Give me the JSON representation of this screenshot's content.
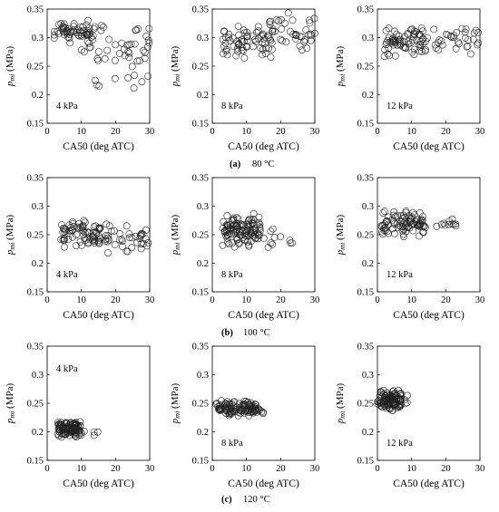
{
  "figure": {
    "captions": [
      {
        "letter": "(a)",
        "text": "80 °C"
      },
      {
        "letter": "(b)",
        "text": "100 °C"
      },
      {
        "letter": "(c)",
        "text": "120 °C"
      }
    ]
  },
  "chart_data": [
    {
      "type": "scatter",
      "id": "a1",
      "condition": "4 kPa",
      "xlabel": "CA50 (deg ATC)",
      "ylabel_sym": "p",
      "ylabel_sub": "mi",
      "ylabel_unit": "(MPa)",
      "xlim": [
        0,
        30
      ],
      "ylim": [
        0.15,
        0.35
      ],
      "xticks": [
        0,
        10,
        20,
        30
      ],
      "yticks": [
        0.15,
        0.2,
        0.25,
        0.3,
        0.35
      ],
      "series": [
        {
          "cluster": {
            "x": [
              2,
              14
            ],
            "y": [
              0.285,
              0.335
            ],
            "n": 60
          },
          "spread": {
            "x": [
              10,
              30
            ],
            "y": [
              0.2,
              0.345
            ],
            "n": 50
          }
        }
      ]
    },
    {
      "type": "scatter",
      "id": "a2",
      "condition": "8 kPa",
      "xlabel": "CA50 (deg ATC)",
      "ylabel_sym": "p",
      "ylabel_sub": "mi",
      "ylabel_unit": "(MPa)",
      "xlim": [
        0,
        30
      ],
      "ylim": [
        0.15,
        0.35
      ],
      "xticks": [
        0,
        10,
        20,
        30
      ],
      "yticks": [
        0.15,
        0.2,
        0.25,
        0.3,
        0.35
      ],
      "series": [
        {
          "cluster": {
            "x": [
              3,
              18
            ],
            "y": [
              0.26,
              0.33
            ],
            "n": 65
          },
          "spread": {
            "x": [
              15,
              30
            ],
            "y": [
              0.265,
              0.345
            ],
            "n": 40
          }
        }
      ]
    },
    {
      "type": "scatter",
      "id": "a3",
      "condition": "12 kPa",
      "xlabel": "CA50 (deg ATC)",
      "ylabel_sym": "p",
      "ylabel_sub": "mi",
      "ylabel_unit": "(MPa)",
      "xlim": [
        0,
        30
      ],
      "ylim": [
        0.15,
        0.35
      ],
      "xticks": [
        0,
        10,
        20,
        30
      ],
      "yticks": [
        0.15,
        0.2,
        0.25,
        0.3,
        0.35
      ],
      "series": [
        {
          "cluster": {
            "x": [
              2,
              14
            ],
            "y": [
              0.265,
              0.325
            ],
            "n": 65
          },
          "spread": {
            "x": [
              12,
              30
            ],
            "y": [
              0.27,
              0.32
            ],
            "n": 40
          }
        }
      ]
    },
    {
      "type": "scatter",
      "id": "b1",
      "condition": "4 kPa",
      "xlabel": "CA50 (deg ATC)",
      "ylabel_sym": "p",
      "ylabel_sub": "mi",
      "ylabel_unit": "(MPa)",
      "xlim": [
        0,
        30
      ],
      "ylim": [
        0.15,
        0.35
      ],
      "xticks": [
        0,
        10,
        20,
        30
      ],
      "yticks": [
        0.15,
        0.2,
        0.25,
        0.3,
        0.35
      ],
      "series": [
        {
          "cluster": {
            "x": [
              4,
              16
            ],
            "y": [
              0.225,
              0.28
            ],
            "n": 70
          },
          "spread": {
            "x": [
              15,
              30
            ],
            "y": [
              0.215,
              0.275
            ],
            "n": 45
          }
        }
      ]
    },
    {
      "type": "scatter",
      "id": "b2",
      "condition": "8 kPa",
      "xlabel": "CA50 (deg ATC)",
      "ylabel_sym": "p",
      "ylabel_sub": "mi",
      "ylabel_unit": "(MPa)",
      "xlim": [
        0,
        30
      ],
      "ylim": [
        0.15,
        0.35
      ],
      "xticks": [
        0,
        10,
        20,
        30
      ],
      "yticks": [
        0.15,
        0.2,
        0.25,
        0.3,
        0.35
      ],
      "series": [
        {
          "cluster": {
            "x": [
              3,
              14
            ],
            "y": [
              0.225,
              0.29
            ],
            "n": 110
          },
          "spread": {
            "x": [
              12,
              25
            ],
            "y": [
              0.225,
              0.265
            ],
            "n": 15
          }
        }
      ]
    },
    {
      "type": "scatter",
      "id": "b3",
      "condition": "12 kPa",
      "xlabel": "CA50 (deg ATC)",
      "ylabel_sym": "p",
      "ylabel_sub": "mi",
      "ylabel_unit": "(MPa)",
      "xlim": [
        0,
        30
      ],
      "ylim": [
        0.15,
        0.35
      ],
      "xticks": [
        0,
        10,
        20,
        30
      ],
      "yticks": [
        0.15,
        0.2,
        0.25,
        0.3,
        0.35
      ],
      "series": [
        {
          "cluster": {
            "x": [
              1,
              14
            ],
            "y": [
              0.245,
              0.295
            ],
            "n": 90
          },
          "spread": {
            "x": [
              14,
              24
            ],
            "y": [
              0.255,
              0.28
            ],
            "n": 12
          }
        }
      ]
    },
    {
      "type": "scatter",
      "id": "c1",
      "condition": "4 kPa",
      "xlabel": "CA50 (deg ATC)",
      "ylabel_sym": "p",
      "ylabel_sub": "mi",
      "ylabel_unit": "(MPa)",
      "xlim": [
        0,
        30
      ],
      "ylim": [
        0.15,
        0.35
      ],
      "xticks": [
        0,
        10,
        20,
        30
      ],
      "yticks": [
        0.15,
        0.2,
        0.25,
        0.3,
        0.35
      ],
      "series": [
        {
          "cluster": {
            "x": [
              3,
              10
            ],
            "y": [
              0.19,
              0.22
            ],
            "n": 110
          },
          "spread": {
            "x": [
              9,
              15
            ],
            "y": [
              0.19,
              0.21
            ],
            "n": 6
          }
        }
      ]
    },
    {
      "type": "scatter",
      "id": "c2",
      "condition": "8 kPa",
      "xlabel": "CA50 (deg ATC)",
      "ylabel_sym": "p",
      "ylabel_sub": "mi",
      "ylabel_unit": "(MPa)",
      "xlim": [
        0,
        30
      ],
      "ylim": [
        0.15,
        0.35
      ],
      "xticks": [
        0,
        10,
        20,
        30
      ],
      "yticks": [
        0.15,
        0.2,
        0.25,
        0.3,
        0.35
      ],
      "series": [
        {
          "cluster": {
            "x": [
              1,
              13
            ],
            "y": [
              0.225,
              0.255
            ],
            "n": 110
          },
          "spread": {
            "x": [
              12,
              17
            ],
            "y": [
              0.23,
              0.245
            ],
            "n": 8
          }
        }
      ]
    },
    {
      "type": "scatter",
      "id": "c3",
      "condition": "12 kPa",
      "xlabel": "CA50 (deg ATC)",
      "ylabel_sym": "p",
      "ylabel_sub": "mi",
      "ylabel_unit": "(MPa)",
      "xlim": [
        0,
        30
      ],
      "ylim": [
        0.15,
        0.35
      ],
      "xticks": [
        0,
        10,
        20,
        30
      ],
      "yticks": [
        0.15,
        0.2,
        0.25,
        0.3,
        0.35
      ],
      "series": [
        {
          "cluster": {
            "x": [
              0,
              7
            ],
            "y": [
              0.235,
              0.275
            ],
            "n": 110
          },
          "spread": {
            "x": [
              5,
              9
            ],
            "y": [
              0.245,
              0.27
            ],
            "n": 6
          }
        }
      ]
    }
  ]
}
